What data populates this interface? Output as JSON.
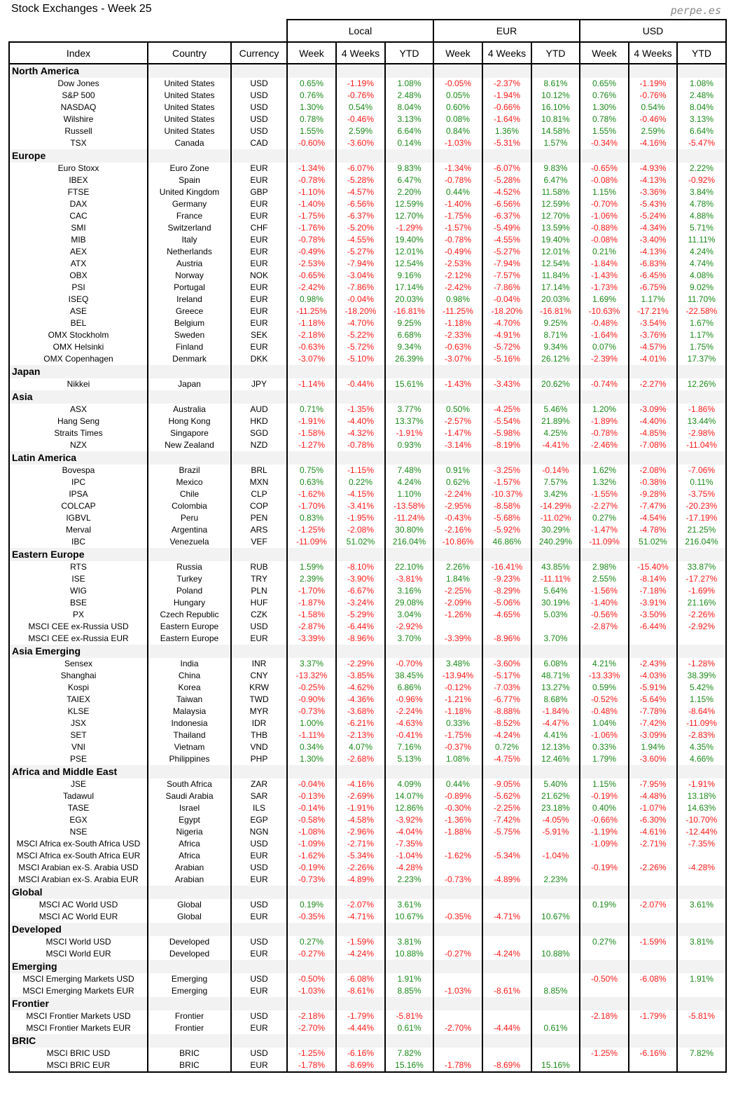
{
  "title": "Stock Exchanges - Week 25",
  "brand": "perpe.es",
  "groups": [
    "Local",
    "EUR",
    "USD"
  ],
  "columns": [
    "Index",
    "Country",
    "Currency",
    "Week",
    "4 Weeks",
    "YTD",
    "Week",
    "4 Weeks",
    "YTD",
    "Week",
    "4 Weeks",
    "YTD"
  ],
  "colors": {
    "negative": "#ff1a1a",
    "positive": "#1b8a1b",
    "section_bg": "#f2f2f2"
  },
  "sections": [
    {
      "name": "North America",
      "rows": [
        [
          "Dow Jones",
          "United States",
          "USD",
          "0.65%",
          "-1.19%",
          "1.08%",
          "-0.05%",
          "-2.37%",
          "8.61%",
          "0.65%",
          "-1.19%",
          "1.08%"
        ],
        [
          "S&P 500",
          "United States",
          "USD",
          "0.76%",
          "-0.76%",
          "2.48%",
          "0.05%",
          "-1.94%",
          "10.12%",
          "0.76%",
          "-0.76%",
          "2.48%"
        ],
        [
          "NASDAQ",
          "United States",
          "USD",
          "1.30%",
          "0.54%",
          "8.04%",
          "0.60%",
          "-0.66%",
          "16.10%",
          "1.30%",
          "0.54%",
          "8.04%"
        ],
        [
          "Wilshire",
          "United States",
          "USD",
          "0.78%",
          "-0.46%",
          "3.13%",
          "0.08%",
          "-1.64%",
          "10.81%",
          "0.78%",
          "-0.46%",
          "3.13%"
        ],
        [
          "Russell",
          "United States",
          "USD",
          "1.55%",
          "2.59%",
          "6.64%",
          "0.84%",
          "1.36%",
          "14.58%",
          "1.55%",
          "2.59%",
          "6.64%"
        ],
        [
          "TSX",
          "Canada",
          "CAD",
          "-0.60%",
          "-3.60%",
          "0.14%",
          "-1.03%",
          "-5.31%",
          "1.57%",
          "-0.34%",
          "-4.16%",
          "-5.47%"
        ]
      ]
    },
    {
      "name": "Europe",
      "rows": [
        [
          "Euro Stoxx",
          "Euro Zone",
          "EUR",
          "-1.34%",
          "-6.07%",
          "9.83%",
          "-1.34%",
          "-6.07%",
          "9.83%",
          "-0.65%",
          "-4.93%",
          "2.22%"
        ],
        [
          "IBEX",
          "Spain",
          "EUR",
          "-0.78%",
          "-5.28%",
          "6.47%",
          "-0.78%",
          "-5.28%",
          "6.47%",
          "-0.08%",
          "-4.13%",
          "-0.92%"
        ],
        [
          "FTSE",
          "United Kingdom",
          "GBP",
          "-1.10%",
          "-4.57%",
          "2.20%",
          "0.44%",
          "-4.52%",
          "11.58%",
          "1.15%",
          "-3.36%",
          "3.84%"
        ],
        [
          "DAX",
          "Germany",
          "EUR",
          "-1.40%",
          "-6.56%",
          "12.59%",
          "-1.40%",
          "-6.56%",
          "12.59%",
          "-0.70%",
          "-5.43%",
          "4.78%"
        ],
        [
          "CAC",
          "France",
          "EUR",
          "-1.75%",
          "-6.37%",
          "12.70%",
          "-1.75%",
          "-6.37%",
          "12.70%",
          "-1.06%",
          "-5.24%",
          "4.88%"
        ],
        [
          "SMI",
          "Switzerland",
          "CHF",
          "-1.76%",
          "-5.20%",
          "-1.29%",
          "-1.57%",
          "-5.49%",
          "13.59%",
          "-0.88%",
          "-4.34%",
          "5.71%"
        ],
        [
          "MIB",
          "Italy",
          "EUR",
          "-0.78%",
          "-4.55%",
          "19.40%",
          "-0.78%",
          "-4.55%",
          "19.40%",
          "-0.08%",
          "-3.40%",
          "11.11%"
        ],
        [
          "AEX",
          "Netherlands",
          "EUR",
          "-0.49%",
          "-5.27%",
          "12.01%",
          "-0.49%",
          "-5.27%",
          "12.01%",
          "0.21%",
          "-4.13%",
          "4.24%"
        ],
        [
          "ATX",
          "Austria",
          "EUR",
          "-2.53%",
          "-7.94%",
          "12.54%",
          "-2.53%",
          "-7.94%",
          "12.54%",
          "-1.84%",
          "-6.83%",
          "4.74%"
        ],
        [
          "OBX",
          "Norway",
          "NOK",
          "-0.65%",
          "-3.04%",
          "9.16%",
          "-2.12%",
          "-7.57%",
          "11.84%",
          "-1.43%",
          "-6.45%",
          "4.08%"
        ],
        [
          "PSI",
          "Portugal",
          "EUR",
          "-2.42%",
          "-7.86%",
          "17.14%",
          "-2.42%",
          "-7.86%",
          "17.14%",
          "-1.73%",
          "-6.75%",
          "9.02%"
        ],
        [
          "ISEQ",
          "Ireland",
          "EUR",
          "0.98%",
          "-0.04%",
          "20.03%",
          "0.98%",
          "-0.04%",
          "20.03%",
          "1.69%",
          "1.17%",
          "11.70%"
        ],
        [
          "ASE",
          "Greece",
          "EUR",
          "-11.25%",
          "-18.20%",
          "-16.81%",
          "-11.25%",
          "-18.20%",
          "-16.81%",
          "-10.63%",
          "-17.21%",
          "-22.58%"
        ],
        [
          "BEL",
          "Belgium",
          "EUR",
          "-1.18%",
          "-4.70%",
          "9.25%",
          "-1.18%",
          "-4.70%",
          "9.25%",
          "-0.48%",
          "-3.54%",
          "1.67%"
        ],
        [
          "OMX Stockholm",
          "Sweden",
          "SEK",
          "-2.18%",
          "-5.22%",
          "6.68%",
          "-2.33%",
          "-4.91%",
          "8.71%",
          "-1.64%",
          "-3.76%",
          "1.17%"
        ],
        [
          "OMX Helsinki",
          "Finland",
          "EUR",
          "-0.63%",
          "-5.72%",
          "9.34%",
          "-0.63%",
          "-5.72%",
          "9.34%",
          "0.07%",
          "-4.57%",
          "1.75%"
        ],
        [
          "OMX Copenhagen",
          "Denmark",
          "DKK",
          "-3.07%",
          "-5.10%",
          "26.39%",
          "-3.07%",
          "-5.16%",
          "26.12%",
          "-2.39%",
          "-4.01%",
          "17.37%"
        ]
      ]
    },
    {
      "name": "Japan",
      "rows": [
        [
          "Nikkei",
          "Japan",
          "JPY",
          "-1.14%",
          "-0.44%",
          "15.61%",
          "-1.43%",
          "-3.43%",
          "20.62%",
          "-0.74%",
          "-2.27%",
          "12.26%"
        ]
      ]
    },
    {
      "name": "Asia",
      "rows": [
        [
          "ASX",
          "Australia",
          "AUD",
          "0.71%",
          "-1.35%",
          "3.77%",
          "0.50%",
          "-4.25%",
          "5.46%",
          "1.20%",
          "-3.09%",
          "-1.86%"
        ],
        [
          "Hang Seng",
          "Hong Kong",
          "HKD",
          "-1.91%",
          "-4.40%",
          "13.37%",
          "-2.57%",
          "-5.54%",
          "21.89%",
          "-1.89%",
          "-4.40%",
          "13.44%"
        ],
        [
          "Straits Times",
          "Singapore",
          "SGD",
          "-1.58%",
          "-4.32%",
          "-1.91%",
          "-1.47%",
          "-5.98%",
          "4.25%",
          "-0.78%",
          "-4.85%",
          "-2.98%"
        ],
        [
          "NZX",
          "New Zealand",
          "NZD",
          "-1.27%",
          "-0.78%",
          "0.93%",
          "-3.14%",
          "-8.19%",
          "-4.41%",
          "-2.46%",
          "-7.08%",
          "-11.04%"
        ]
      ]
    },
    {
      "name": "Latin America",
      "rows": [
        [
          "Bovespa",
          "Brazil",
          "BRL",
          "0.75%",
          "-1.15%",
          "7.48%",
          "0.91%",
          "-3.25%",
          "-0.14%",
          "1.62%",
          "-2.08%",
          "-7.06%"
        ],
        [
          "IPC",
          "Mexico",
          "MXN",
          "0.63%",
          "0.22%",
          "4.24%",
          "0.62%",
          "-1.57%",
          "7.57%",
          "1.32%",
          "-0.38%",
          "0.11%"
        ],
        [
          "IPSA",
          "Chile",
          "CLP",
          "-1.62%",
          "-4.15%",
          "1.10%",
          "-2.24%",
          "-10.37%",
          "3.42%",
          "-1.55%",
          "-9.28%",
          "-3.75%"
        ],
        [
          "COLCAP",
          "Colombia",
          "COP",
          "-1.70%",
          "-3.41%",
          "-13.58%",
          "-2.95%",
          "-8.58%",
          "-14.29%",
          "-2.27%",
          "-7.47%",
          "-20.23%"
        ],
        [
          "IGBVL",
          "Peru",
          "PEN",
          "0.83%",
          "-1.95%",
          "-11.24%",
          "-0.43%",
          "-5.68%",
          "-11.02%",
          "0.27%",
          "-4.54%",
          "-17.19%"
        ],
        [
          "Merval",
          "Argentina",
          "ARS",
          "-1.25%",
          "-2.08%",
          "30.80%",
          "-2.16%",
          "-5.92%",
          "30.29%",
          "-1.47%",
          "-4.78%",
          "21.25%"
        ],
        [
          "IBC",
          "Venezuela",
          "VEF",
          "-11.09%",
          "51.02%",
          "216.04%",
          "-10.86%",
          "46.86%",
          "240.29%",
          "-11.09%",
          "51.02%",
          "216.04%"
        ]
      ]
    },
    {
      "name": "Eastern Europe",
      "rows": [
        [
          "RTS",
          "Russia",
          "RUB",
          "1.59%",
          "-8.10%",
          "22.10%",
          "2.26%",
          "-16.41%",
          "43.85%",
          "2.98%",
          "-15.40%",
          "33.87%"
        ],
        [
          "ISE",
          "Turkey",
          "TRY",
          "2.39%",
          "-3.90%",
          "-3.81%",
          "1.84%",
          "-9.23%",
          "-11.11%",
          "2.55%",
          "-8.14%",
          "-17.27%"
        ],
        [
          "WIG",
          "Poland",
          "PLN",
          "-1.70%",
          "-6.67%",
          "3.16%",
          "-2.25%",
          "-8.29%",
          "5.64%",
          "-1.56%",
          "-7.18%",
          "-1.69%"
        ],
        [
          "BSE",
          "Hungary",
          "HUF",
          "-1.87%",
          "-3.24%",
          "29.08%",
          "-2.09%",
          "-5.06%",
          "30.19%",
          "-1.40%",
          "-3.91%",
          "21.16%"
        ],
        [
          "PX",
          "Czech Republic",
          "CZK",
          "-1.58%",
          "-5.29%",
          "3.04%",
          "-1.26%",
          "-4.65%",
          "5.03%",
          "-0.56%",
          "-3.50%",
          "-2.26%"
        ],
        [
          "MSCI CEE ex-Russia USD",
          "Eastern Europe",
          "USD",
          "-2.87%",
          "-6.44%",
          "-2.92%",
          "",
          "",
          "",
          "-2.87%",
          "-6.44%",
          "-2.92%"
        ],
        [
          "MSCI CEE ex-Russia EUR",
          "Eastern Europe",
          "EUR",
          "-3.39%",
          "-8.96%",
          "3.70%",
          "-3.39%",
          "-8.96%",
          "3.70%",
          "",
          "",
          ""
        ]
      ]
    },
    {
      "name": "Asia Emerging",
      "rows": [
        [
          "Sensex",
          "India",
          "INR",
          "3.37%",
          "-2.29%",
          "-0.70%",
          "3.48%",
          "-3.60%",
          "6.08%",
          "4.21%",
          "-2.43%",
          "-1.28%"
        ],
        [
          "Shanghai",
          "China",
          "CNY",
          "-13.32%",
          "-3.85%",
          "38.45%",
          "-13.94%",
          "-5.17%",
          "48.71%",
          "-13.33%",
          "-4.03%",
          "38.39%"
        ],
        [
          "Kospi",
          "Korea",
          "KRW",
          "-0.25%",
          "-4.62%",
          "6.86%",
          "-0.12%",
          "-7.03%",
          "13.27%",
          "0.59%",
          "-5.91%",
          "5.42%"
        ],
        [
          "TAIEX",
          "Taiwan",
          "TWD",
          "-0.90%",
          "-4.36%",
          "-0.96%",
          "-1.21%",
          "-6.77%",
          "8.68%",
          "-0.52%",
          "-5.64%",
          "1.15%"
        ],
        [
          "KLSE",
          "Malaysia",
          "MYR",
          "-0.73%",
          "-3.68%",
          "-2.24%",
          "-1.18%",
          "-8.88%",
          "-1.84%",
          "-0.48%",
          "-7.78%",
          "-8.64%"
        ],
        [
          "JSX",
          "Indonesia",
          "IDR",
          "1.00%",
          "-6.21%",
          "-4.63%",
          "0.33%",
          "-8.52%",
          "-4.47%",
          "1.04%",
          "-7.42%",
          "-11.09%"
        ],
        [
          "SET",
          "Thailand",
          "THB",
          "-1.11%",
          "-2.13%",
          "-0.41%",
          "-1.75%",
          "-4.24%",
          "4.41%",
          "-1.06%",
          "-3.09%",
          "-2.83%"
        ],
        [
          "VNI",
          "Vietnam",
          "VND",
          "0.34%",
          "4.07%",
          "7.16%",
          "-0.37%",
          "0.72%",
          "12.13%",
          "0.33%",
          "1.94%",
          "4.35%"
        ],
        [
          "PSE",
          "Philippines",
          "PHP",
          "1.30%",
          "-2.68%",
          "5.13%",
          "1.08%",
          "-4.75%",
          "12.46%",
          "1.79%",
          "-3.60%",
          "4.66%"
        ]
      ]
    },
    {
      "name": "Africa and Middle East",
      "rows": [
        [
          "JSE",
          "South Africa",
          "ZAR",
          "-0.04%",
          "-4.16%",
          "4.09%",
          "0.44%",
          "-9.05%",
          "5.40%",
          "1.15%",
          "-7.95%",
          "-1.91%"
        ],
        [
          "Tadawul",
          "Saudi Arabia",
          "SAR",
          "-0.13%",
          "-2.69%",
          "14.07%",
          "-0.89%",
          "-5.62%",
          "21.62%",
          "-0.19%",
          "-4.48%",
          "13.18%"
        ],
        [
          "TASE",
          "Israel",
          "ILS",
          "-0.14%",
          "-1.91%",
          "12.86%",
          "-0.30%",
          "-2.25%",
          "23.18%",
          "0.40%",
          "-1.07%",
          "14.63%"
        ],
        [
          "EGX",
          "Egypt",
          "EGP",
          "-0.58%",
          "-4.58%",
          "-3.92%",
          "-1.36%",
          "-7.42%",
          "-4.05%",
          "-0.66%",
          "-6.30%",
          "-10.70%"
        ],
        [
          "NSE",
          "Nigeria",
          "NGN",
          "-1.08%",
          "-2.96%",
          "-4.04%",
          "-1.88%",
          "-5.75%",
          "-5.91%",
          "-1.19%",
          "-4.61%",
          "-12.44%"
        ],
        [
          "MSCI Africa ex-South Africa USD",
          "Africa",
          "USD",
          "-1.09%",
          "-2.71%",
          "-7.35%",
          "",
          "",
          "",
          "-1.09%",
          "-2.71%",
          "-7.35%"
        ],
        [
          "MSCI Africa ex-South Africa EUR",
          "Africa",
          "EUR",
          "-1.62%",
          "-5.34%",
          "-1.04%",
          "-1.62%",
          "-5.34%",
          "-1.04%",
          "",
          "",
          ""
        ],
        [
          "MSCI Arabian ex-S. Arabia USD",
          "Arabian",
          "USD",
          "-0.19%",
          "-2.26%",
          "-4.28%",
          "",
          "",
          "",
          "-0.19%",
          "-2.26%",
          "-4.28%"
        ],
        [
          "MSCI Arabian ex-S. Arabia EUR",
          "Arabian",
          "EUR",
          "-0.73%",
          "-4.89%",
          "2.23%",
          "-0.73%",
          "-4.89%",
          "2.23%",
          "",
          "",
          ""
        ]
      ]
    },
    {
      "name": "Global",
      "rows": [
        [
          "MSCI AC World USD",
          "Global",
          "USD",
          "0.19%",
          "-2.07%",
          "3.61%",
          "",
          "",
          "",
          "0.19%",
          "-2.07%",
          "3.61%"
        ],
        [
          "MSCI AC World EUR",
          "Global",
          "EUR",
          "-0.35%",
          "-4.71%",
          "10.67%",
          "-0.35%",
          "-4.71%",
          "10.67%",
          "",
          "",
          ""
        ]
      ]
    },
    {
      "name": "Developed",
      "rows": [
        [
          "MSCI World USD",
          "Developed",
          "USD",
          "0.27%",
          "-1.59%",
          "3.81%",
          "",
          "",
          "",
          "0.27%",
          "-1.59%",
          "3.81%"
        ],
        [
          "MSCI World EUR",
          "Developed",
          "EUR",
          "-0.27%",
          "-4.24%",
          "10.88%",
          "-0.27%",
          "-4.24%",
          "10.88%",
          "",
          "",
          ""
        ]
      ]
    },
    {
      "name": "Emerging",
      "rows": [
        [
          "MSCI Emerging Markets USD",
          "Emerging",
          "USD",
          "-0.50%",
          "-6.08%",
          "1.91%",
          "",
          "",
          "",
          "-0.50%",
          "-6.08%",
          "1.91%"
        ],
        [
          "MSCI Emerging Markets EUR",
          "Emerging",
          "EUR",
          "-1.03%",
          "-8.61%",
          "8.85%",
          "-1.03%",
          "-8.61%",
          "8.85%",
          "",
          "",
          ""
        ]
      ]
    },
    {
      "name": "Frontier",
      "rows": [
        [
          "MSCI Frontier Markets USD",
          "Frontier",
          "USD",
          "-2.18%",
          "-1.79%",
          "-5.81%",
          "",
          "",
          "",
          "-2.18%",
          "-1.79%",
          "-5.81%"
        ],
        [
          "MSCI Frontier Markets EUR",
          "Frontier",
          "EUR",
          "-2.70%",
          "-4.44%",
          "0.61%",
          "-2.70%",
          "-4.44%",
          "0.61%",
          "",
          "",
          ""
        ]
      ]
    },
    {
      "name": "BRIC",
      "rows": [
        [
          "MSCI BRIC USD",
          "BRIC",
          "USD",
          "-1.25%",
          "-6.16%",
          "7.82%",
          "",
          "",
          "",
          "-1.25%",
          "-6.16%",
          "7.82%"
        ],
        [
          "MSCI BRIC EUR",
          "BRIC",
          "EUR",
          "-1.78%",
          "-8.69%",
          "15.16%",
          "-1.78%",
          "-8.69%",
          "15.16%",
          "",
          "",
          ""
        ]
      ]
    }
  ]
}
